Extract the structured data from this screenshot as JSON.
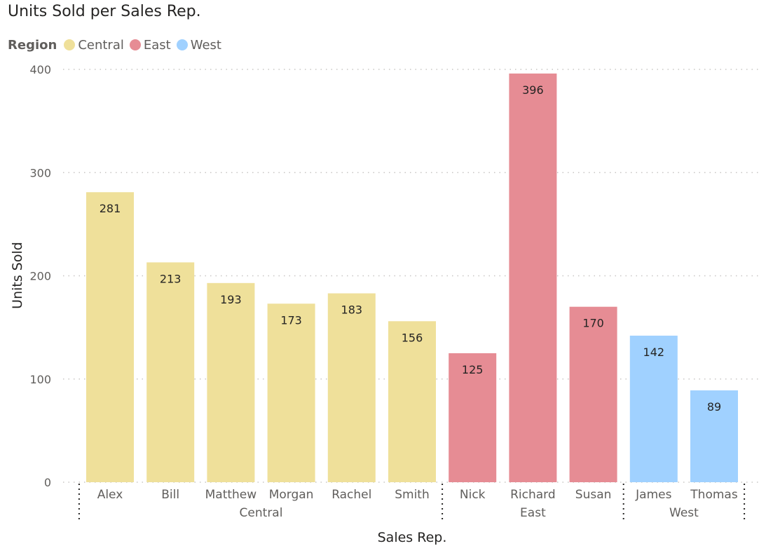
{
  "chart_data": {
    "type": "bar",
    "title": "Units Sold per Sales Rep.",
    "xlabel": "Sales Rep.",
    "ylabel": "Units Sold",
    "ylim": [
      0,
      400
    ],
    "yticks": [
      0,
      100,
      200,
      300,
      400
    ],
    "legend": {
      "title": "Region",
      "placement": "top-left",
      "items": [
        {
          "label": "Central",
          "color": "#EFE09A"
        },
        {
          "label": "East",
          "color": "#E68C94"
        },
        {
          "label": "West",
          "color": "#A0D1FF"
        }
      ]
    },
    "categories": [
      "Alex",
      "Bill",
      "Matthew",
      "Morgan",
      "Rachel",
      "Smith",
      "Nick",
      "Richard",
      "Susan",
      "James",
      "Thomas"
    ],
    "groups": [
      "Central",
      "Central",
      "Central",
      "Central",
      "Central",
      "Central",
      "East",
      "East",
      "East",
      "West",
      "West"
    ],
    "values": [
      281,
      213,
      193,
      173,
      183,
      156,
      125,
      396,
      170,
      142,
      89
    ],
    "grid": true,
    "data_labels": true
  }
}
